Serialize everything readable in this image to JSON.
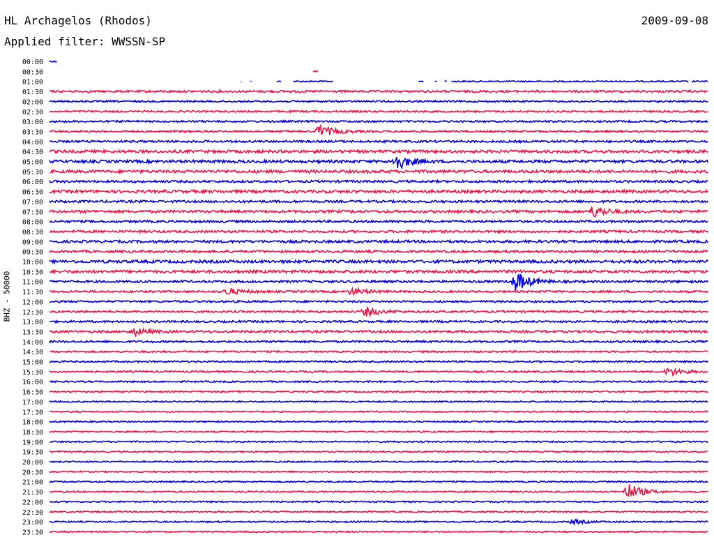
{
  "header": {
    "station": "HL Archagelos (Rhodos)",
    "date": "2009-09-08",
    "filter": "Applied filter: WWSSN-SP",
    "channel": "BHZ - 50000"
  },
  "colors": {
    "odd": "#0000dd",
    "even": "#ee1144",
    "label": "#000000"
  },
  "chart_data": {
    "type": "line",
    "title": "HL Archagelos (Rhodos)",
    "subtitle": "Applied filter: WWSSN-SP",
    "ylabel": "BHZ - 50000",
    "date": "2009-09-08",
    "row_labels": [
      "00:00",
      "00:30",
      "01:00",
      "01:30",
      "02:00",
      "02:30",
      "03:00",
      "03:30",
      "04:00",
      "04:30",
      "05:00",
      "05:30",
      "06:00",
      "06:30",
      "07:00",
      "07:30",
      "08:00",
      "08:30",
      "09:00",
      "09:30",
      "10:00",
      "10:30",
      "11:00",
      "11:30",
      "12:00",
      "12:30",
      "13:00",
      "13:30",
      "14:00",
      "14:30",
      "15:00",
      "15:30",
      "16:00",
      "16:30",
      "17:00",
      "17:30",
      "18:00",
      "18:30",
      "19:00",
      "19:30",
      "20:00",
      "20:30",
      "21:00",
      "21:30",
      "22:00",
      "22:30",
      "23:00",
      "23:30"
    ],
    "series_colors": [
      "#0000dd",
      "#ee1144"
    ],
    "row_noise": [
      1,
      1,
      1,
      1.5,
      1.2,
      1.2,
      1.3,
      1.3,
      1.5,
      2,
      2,
      2,
      1.6,
      2,
      1.6,
      1.8,
      1.6,
      1.6,
      1.8,
      1.6,
      2,
      2,
      1.6,
      1.4,
      1.4,
      1.4,
      1.4,
      1.6,
      1.4,
      1.2,
      1.2,
      1.2,
      1.1,
      1.1,
      1,
      1,
      1,
      1,
      1,
      1,
      1,
      1,
      1,
      1.1,
      1,
      1,
      1,
      1
    ],
    "segments": {
      "0": [
        [
          0,
          0.012
        ]
      ],
      "1": [
        [
          0.4,
          0.408
        ]
      ],
      "2": [
        [
          0.29,
          0.292
        ],
        [
          0.305,
          0.307
        ],
        [
          0.345,
          0.352
        ],
        [
          0.37,
          0.43
        ],
        [
          0.56,
          0.568
        ],
        [
          0.585,
          0.588
        ],
        [
          0.6,
          0.603
        ],
        [
          0.61,
          0.97
        ],
        [
          0.975,
          1.0
        ]
      ]
    },
    "events": [
      {
        "row": 7,
        "x": 0.41,
        "amp": 9
      },
      {
        "row": 10,
        "x": 0.525,
        "amp": 12
      },
      {
        "row": 15,
        "x": 0.825,
        "amp": 8
      },
      {
        "row": 22,
        "x": 0.708,
        "amp": 14
      },
      {
        "row": 23,
        "x": 0.27,
        "amp": 5
      },
      {
        "row": 23,
        "x": 0.46,
        "amp": 5
      },
      {
        "row": 25,
        "x": 0.48,
        "amp": 6
      },
      {
        "row": 27,
        "x": 0.13,
        "amp": 5
      },
      {
        "row": 31,
        "x": 0.94,
        "amp": 6
      },
      {
        "row": 43,
        "x": 0.878,
        "amp": 12
      },
      {
        "row": 46,
        "x": 0.795,
        "amp": 3
      }
    ]
  }
}
